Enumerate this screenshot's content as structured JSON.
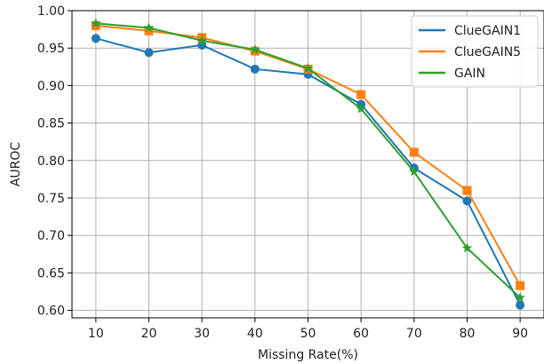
{
  "chart_data": {
    "type": "line",
    "title": "",
    "xlabel": "Missing Rate(%)",
    "ylabel": "AUROC",
    "xlim": [
      5.5,
      94.5
    ],
    "ylim": [
      0.59,
      1.0
    ],
    "x": [
      10,
      20,
      30,
      40,
      50,
      60,
      70,
      80,
      90
    ],
    "xticks": [
      "10",
      "20",
      "30",
      "40",
      "50",
      "60",
      "70",
      "80",
      "90"
    ],
    "yticks": [
      "0.60",
      "0.65",
      "0.70",
      "0.75",
      "0.80",
      "0.85",
      "0.90",
      "0.95",
      "1.00"
    ],
    "grid": true,
    "legend_position": "top-right",
    "series": [
      {
        "name": "ClueGAIN1",
        "color": "#1f77b4",
        "marker": "circle",
        "values": [
          0.963,
          0.944,
          0.954,
          0.922,
          0.915,
          0.875,
          0.79,
          0.746,
          0.607
        ]
      },
      {
        "name": "ClueGAIN5",
        "color": "#ff7f0e",
        "marker": "square",
        "values": [
          0.98,
          0.973,
          0.964,
          0.946,
          0.922,
          0.888,
          0.811,
          0.76,
          0.633
        ]
      },
      {
        "name": "GAIN",
        "color": "#2ca02c",
        "marker": "star",
        "values": [
          0.983,
          0.977,
          0.96,
          0.948,
          0.923,
          0.869,
          0.785,
          0.683,
          0.617
        ]
      }
    ]
  }
}
